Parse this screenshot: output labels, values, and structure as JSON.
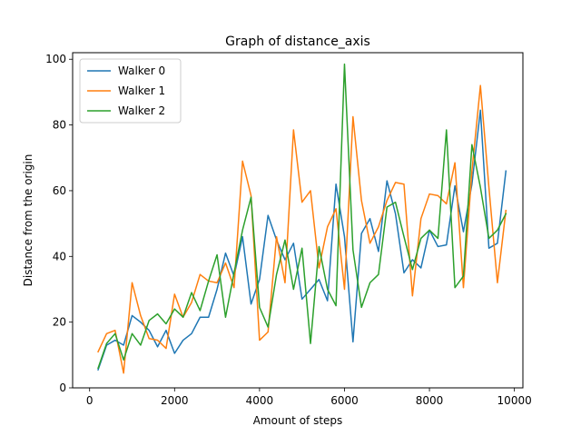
{
  "chart_data": {
    "type": "line",
    "title": "Graph of distance_axis",
    "xlabel": "Amount of steps",
    "ylabel": "Distance from the origin",
    "xlim": [
      -400,
      10200
    ],
    "ylim": [
      0,
      102
    ],
    "xticks": [
      0,
      2000,
      4000,
      6000,
      8000,
      10000
    ],
    "yticks": [
      0,
      20,
      40,
      60,
      80,
      100
    ],
    "grid": false,
    "legend_position": "top-left",
    "x": [
      200,
      400,
      600,
      800,
      1000,
      1200,
      1400,
      1600,
      1800,
      2000,
      2200,
      2400,
      2600,
      2800,
      3000,
      3200,
      3400,
      3600,
      3800,
      4000,
      4200,
      4400,
      4600,
      4800,
      5000,
      5200,
      5400,
      5600,
      5800,
      6000,
      6200,
      6400,
      6600,
      6800,
      7000,
      7200,
      7400,
      7600,
      7800,
      8000,
      8200,
      8400,
      8600,
      8800,
      9000,
      9200,
      9400,
      9600,
      9800
    ],
    "series": [
      {
        "name": "Walker 0",
        "color": "#1f77b4",
        "values": [
          5.5,
          13,
          14.5,
          13,
          22,
          20,
          17.5,
          12.5,
          17.5,
          10.5,
          14.5,
          16.5,
          21.5,
          21.5,
          30,
          41,
          34,
          46,
          25.5,
          33,
          52.5,
          45,
          39,
          44,
          27,
          30,
          33,
          26.5,
          62,
          46,
          14,
          47,
          51.5,
          41.5,
          63,
          53,
          35,
          39,
          36.5,
          48,
          43,
          43.5,
          61.5,
          47.5,
          62,
          84.5,
          42.5,
          44,
          66
        ]
      },
      {
        "name": "Walker 1",
        "color": "#ff7f0e",
        "values": [
          11,
          16.5,
          17.5,
          4.5,
          32,
          22,
          15,
          14.5,
          12,
          28.5,
          21.5,
          26,
          34.5,
          32.5,
          32,
          38,
          30.5,
          69,
          58.5,
          14.5,
          17,
          46,
          32,
          78.5,
          56.5,
          60,
          36.5,
          49,
          54.5,
          30,
          82.5,
          57,
          44,
          49,
          57,
          62.5,
          62,
          28,
          51.5,
          59,
          58.5,
          56,
          68.5,
          30.5,
          66,
          92,
          61,
          32,
          54
        ]
      },
      {
        "name": "Walker 2",
        "color": "#2ca02c",
        "values": [
          6,
          13.5,
          16.5,
          8.5,
          16.5,
          13,
          20.5,
          22.5,
          19.5,
          24,
          21.5,
          29,
          23.5,
          32.5,
          40.5,
          21.5,
          35,
          48,
          58,
          24.5,
          18.5,
          34.5,
          45,
          30,
          42.5,
          13.5,
          43,
          30,
          25,
          98.5,
          42,
          24.5,
          32,
          34.5,
          55,
          56.5,
          46,
          36,
          45.5,
          48,
          45.5,
          78.5,
          30.5,
          34,
          74,
          61,
          45.5,
          48,
          53
        ]
      }
    ]
  }
}
